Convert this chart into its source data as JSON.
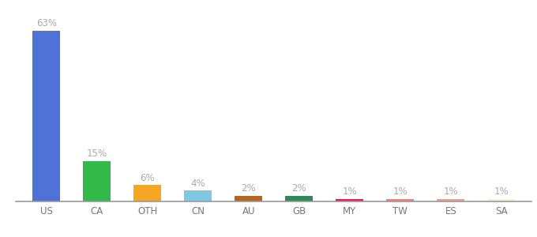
{
  "categories": [
    "US",
    "CA",
    "OTH",
    "CN",
    "AU",
    "GB",
    "MY",
    "TW",
    "ES",
    "SA"
  ],
  "values": [
    63,
    15,
    6,
    4,
    2,
    2,
    1,
    1,
    1,
    1
  ],
  "bar_colors": [
    "#4e72d8",
    "#33b84a",
    "#f5a623",
    "#7ec8e3",
    "#b5651d",
    "#2e8b57",
    "#e8175d",
    "#f08080",
    "#e8a090",
    "#f5f0d8"
  ],
  "labels": [
    "63%",
    "15%",
    "6%",
    "4%",
    "2%",
    "2%",
    "1%",
    "1%",
    "1%",
    "1%"
  ],
  "background_color": "#ffffff",
  "ylim": [
    0,
    70
  ],
  "bar_width": 0.55,
  "label_fontsize": 8.5,
  "tick_fontsize": 8.5,
  "label_color": "#aaaaaa"
}
